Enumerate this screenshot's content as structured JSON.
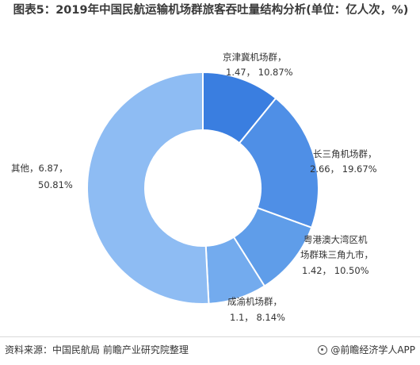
{
  "chart_data": {
    "type": "pie",
    "title": "图表5：2019年中国民航运输机场群旅客吞吐量结构分析(单位：亿人次，%)",
    "slices": [
      {
        "name": "京津冀机场群",
        "value": 1.47,
        "percent": 10.87,
        "label_line1": "京津冀机场群，",
        "label_line2": "1.47， 10.87%",
        "color": "#3a7ee0"
      },
      {
        "name": "长三角机场群",
        "value": 2.66,
        "percent": 19.67,
        "label_line1": "长三角机场群，",
        "label_line2": "2.66， 19.67%",
        "color": "#4f8fe6"
      },
      {
        "name": "粤港澳大湾区机场群珠三角九市",
        "value": 1.42,
        "percent": 10.5,
        "label_line1": "粤港澳大湾区机",
        "label_line2": "场群珠三角九市，",
        "label_line3": "1.42， 10.50%",
        "color": "#5f9de9"
      },
      {
        "name": "成渝机场群",
        "value": 1.1,
        "percent": 8.14,
        "label_line1": "成渝机场群，",
        "label_line2": "1.1， 8.14%",
        "color": "#73abee"
      },
      {
        "name": "其他",
        "value": 6.87,
        "percent": 50.81,
        "label_line1": "其他，6.87，",
        "label_line2": "50.81%",
        "color": "#8ebcf3"
      }
    ],
    "legend": "none",
    "style": "donut"
  },
  "footer": {
    "source": "资料来源：中国民航局 前瞻产业研究院整理",
    "brand": "@前瞻经济学人APP"
  }
}
